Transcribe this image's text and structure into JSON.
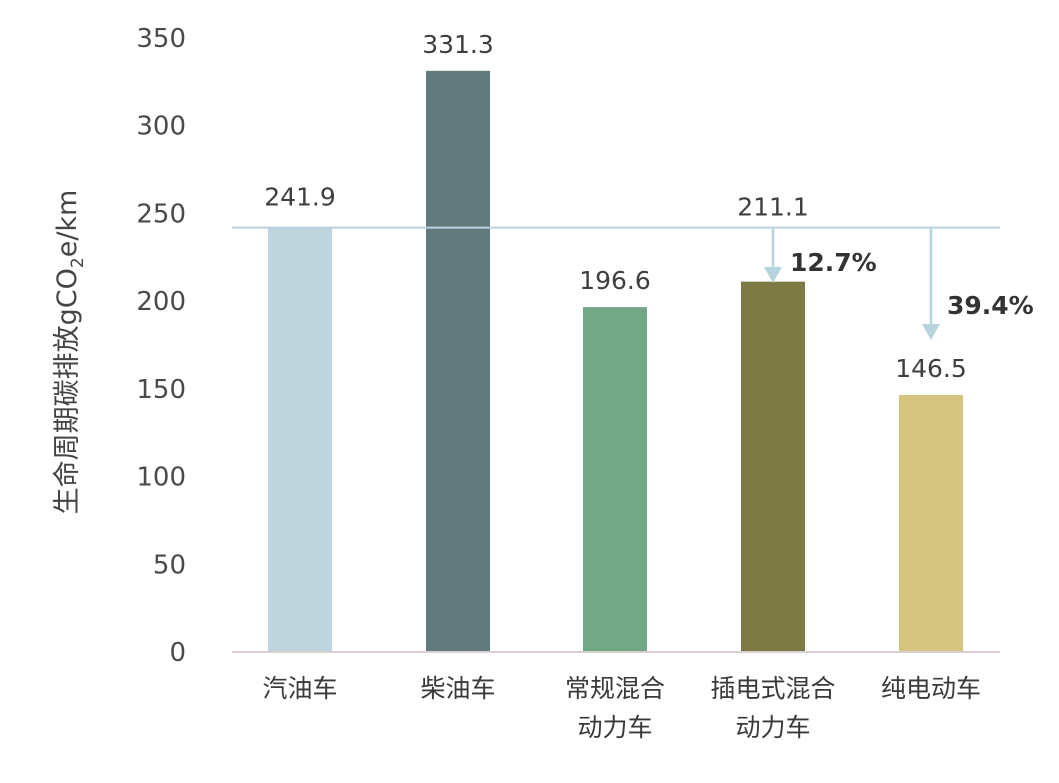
{
  "chart_data": {
    "type": "bar",
    "ylabel_main": "生命周期碳排放gCO",
    "ylabel_sub": "2",
    "ylabel_end": "e/km",
    "ylim": [
      0,
      350
    ],
    "yticks": [
      0,
      50,
      100,
      150,
      200,
      250,
      300,
      350
    ],
    "categories": [
      [
        "汽油车"
      ],
      [
        "柴油车"
      ],
      [
        "常规混合",
        "动力车"
      ],
      [
        "插电式混合",
        "动力车"
      ],
      [
        "纯电动车"
      ]
    ],
    "values": [
      241.9,
      331.3,
      196.6,
      211.1,
      146.5
    ],
    "value_labels": [
      "241.9",
      "331.3",
      "196.6",
      "211.1",
      "146.5"
    ],
    "colors": [
      "#bfd5dd",
      "#637a7d",
      "#72a885",
      "#7d7a43",
      "#d6c57e"
    ],
    "reference_line": {
      "value": 241.9,
      "color": "#b7d3dd"
    },
    "reductions": [
      {
        "category_index": 3,
        "label": "12.7%"
      },
      {
        "category_index": 4,
        "label": "39.4%"
      }
    ],
    "grid": false,
    "legend": "none"
  }
}
